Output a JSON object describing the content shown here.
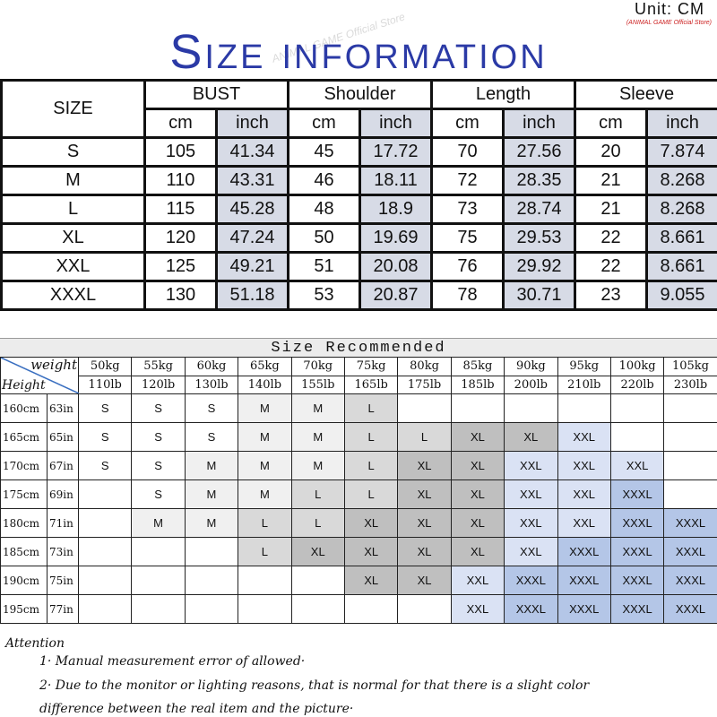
{
  "header": {
    "unit": "Unit: CM",
    "store": "(ANIMAL GAME Official Store)",
    "title": "Size information",
    "watermark": "ANIMAL GAME Official Store"
  },
  "size_table": {
    "size_label": "SIZE",
    "groups": [
      "BUST",
      "Shoulder",
      "Length",
      "Sleeve"
    ],
    "units": [
      "cm",
      "inch"
    ],
    "rows": [
      [
        "S",
        "105",
        "41.34",
        "45",
        "17.72",
        "70",
        "27.56",
        "20",
        "7.874"
      ],
      [
        "M",
        "110",
        "43.31",
        "46",
        "18.11",
        "72",
        "28.35",
        "21",
        "8.268"
      ],
      [
        "L",
        "115",
        "45.28",
        "48",
        "18.9",
        "73",
        "28.74",
        "21",
        "8.268"
      ],
      [
        "XL",
        "120",
        "47.24",
        "50",
        "19.69",
        "75",
        "29.53",
        "22",
        "8.661"
      ],
      [
        "XXL",
        "125",
        "49.21",
        "51",
        "20.08",
        "76",
        "29.92",
        "22",
        "8.661"
      ],
      [
        "XXXL",
        "130",
        "51.18",
        "53",
        "20.87",
        "78",
        "30.71",
        "23",
        "9.055"
      ]
    ],
    "inch_color": "#d7dbe6"
  },
  "recommend": {
    "title": "Size Recommended",
    "weight_label": "weight",
    "height_label": "Height",
    "kg": [
      "50kg",
      "55kg",
      "60kg",
      "65kg",
      "70kg",
      "75kg",
      "80kg",
      "85kg",
      "90kg",
      "95kg",
      "100kg",
      "105kg"
    ],
    "lb": [
      "110lb",
      "120lb",
      "130lb",
      "140lb",
      "155lb",
      "165lb",
      "175lb",
      "185lb",
      "200lb",
      "210lb",
      "220lb",
      "230lb"
    ],
    "rows": [
      {
        "cm": "160cm",
        "in": "63in",
        "sizes": [
          "S",
          "S",
          "S",
          "M",
          "M",
          "L",
          "",
          "",
          "",
          "",
          "",
          ""
        ]
      },
      {
        "cm": "165cm",
        "in": "65in",
        "sizes": [
          "S",
          "S",
          "S",
          "M",
          "M",
          "L",
          "L",
          "XL",
          "XL",
          "XXL",
          "",
          ""
        ]
      },
      {
        "cm": "170cm",
        "in": "67in",
        "sizes": [
          "S",
          "S",
          "M",
          "M",
          "M",
          "L",
          "XL",
          "XL",
          "XXL",
          "XXL",
          "XXL",
          ""
        ]
      },
      {
        "cm": "175cm",
        "in": "69in",
        "sizes": [
          "",
          "S",
          "M",
          "M",
          "L",
          "L",
          "XL",
          "XL",
          "XXL",
          "XXL",
          "XXXL",
          ""
        ]
      },
      {
        "cm": "180cm",
        "in": "71in",
        "sizes": [
          "",
          "M",
          "M",
          "L",
          "L",
          "XL",
          "XL",
          "XL",
          "XXL",
          "XXL",
          "XXXL",
          "XXXL"
        ]
      },
      {
        "cm": "185cm",
        "in": "73in",
        "sizes": [
          "",
          "",
          "",
          "L",
          "XL",
          "XL",
          "XL",
          "XL",
          "XXL",
          "XXXL",
          "XXXL",
          "XXXL"
        ]
      },
      {
        "cm": "190cm",
        "in": "75in",
        "sizes": [
          "",
          "",
          "",
          "",
          "",
          "XL",
          "XL",
          "XXL",
          "XXXL",
          "XXXL",
          "XXXL",
          "XXXL"
        ]
      },
      {
        "cm": "195cm",
        "in": "77in",
        "sizes": [
          "",
          "",
          "",
          "",
          "",
          "",
          "",
          "XXL",
          "XXXL",
          "XXXL",
          "XXXL",
          "XXXL"
        ]
      }
    ],
    "colors": {
      "S": "#ffffff",
      "M": "#f0f0f0",
      "L": "#d9d9d9",
      "XL": "#bfbfbf",
      "XXL": "#dae2f4",
      "XXXL": "#b4c6e7"
    }
  },
  "attention": {
    "title": "Attention",
    "notes": [
      "1· Manual measurement error of allowed·",
      "2·  Due to the monitor or lighting reasons, that is normal for that there is a slight color",
      "difference between the real item and the picture·"
    ]
  }
}
